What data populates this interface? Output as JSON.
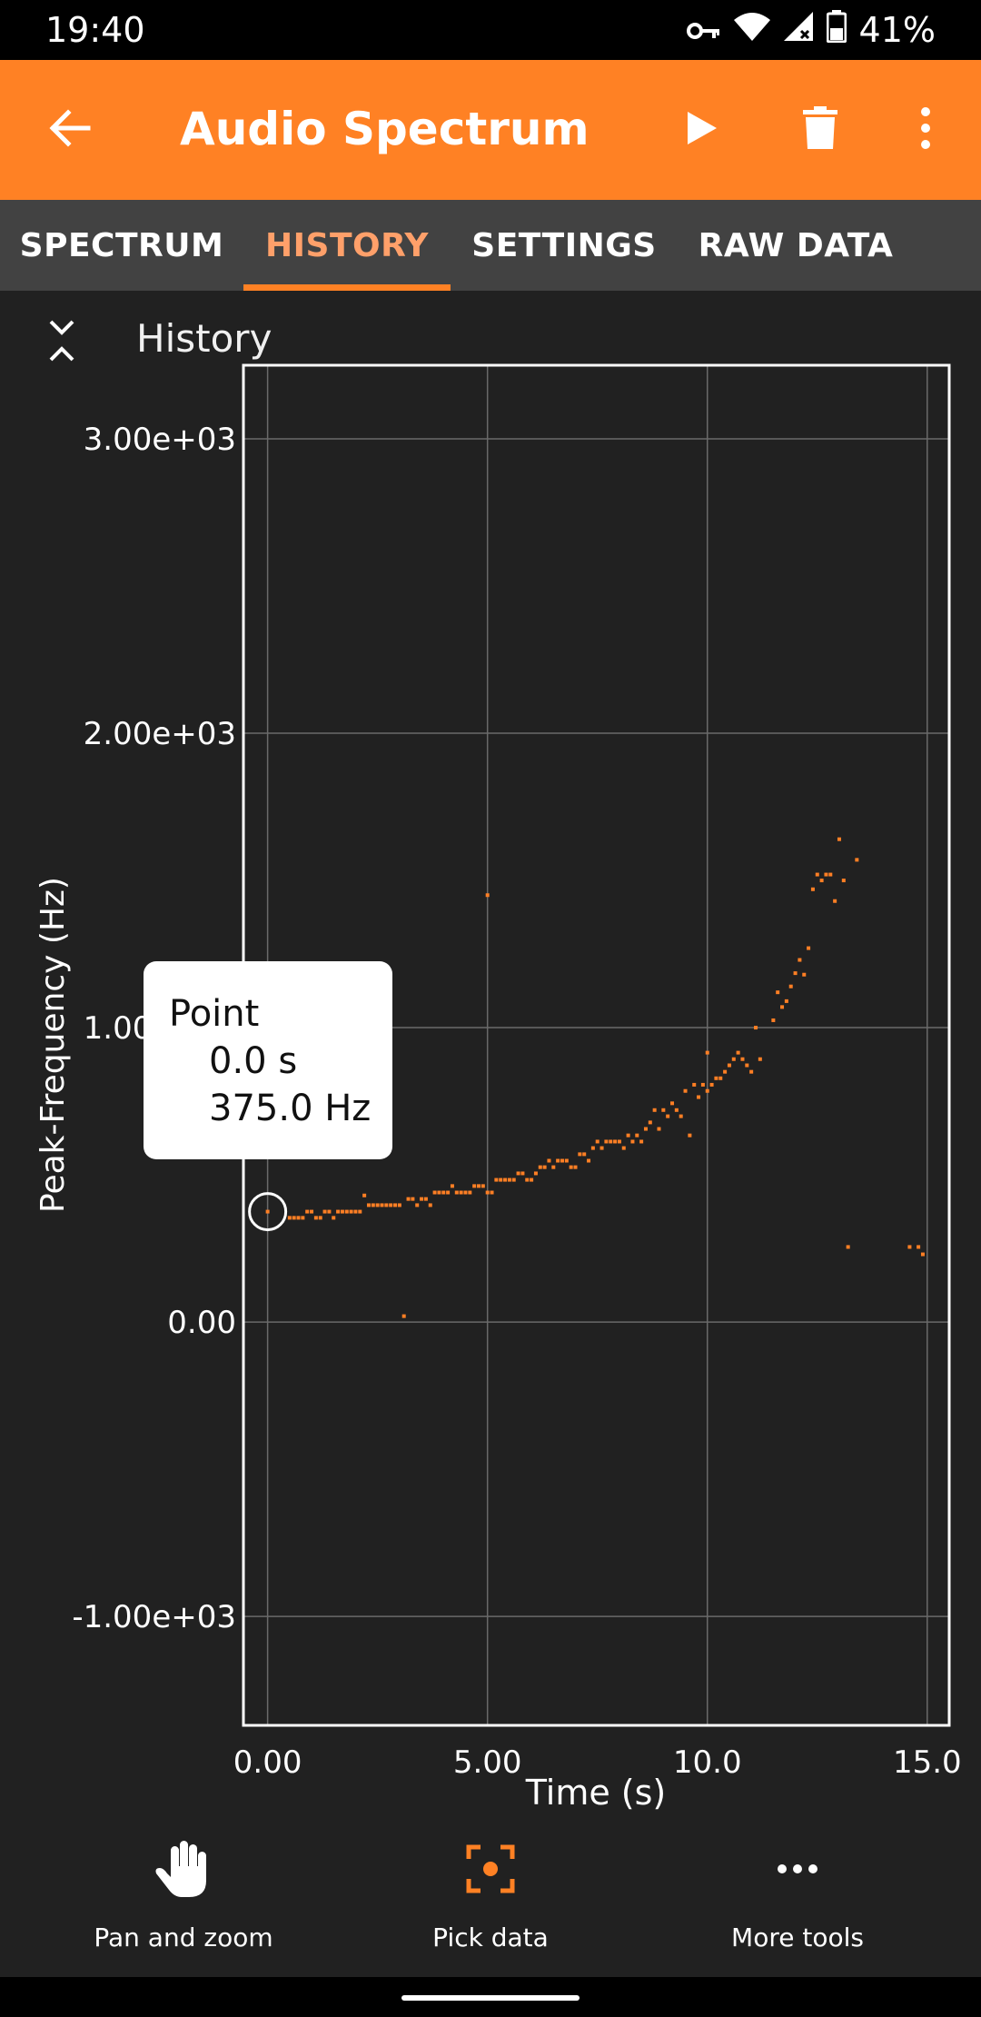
{
  "status_bar": {
    "time": "19:40",
    "battery": "41%"
  },
  "app_bar": {
    "title": "Audio Spectrum",
    "back_icon": "arrow-left-icon",
    "play_icon": "play-icon",
    "delete_icon": "trash-icon",
    "menu_icon": "more-vert-icon"
  },
  "tabs": [
    {
      "label": "SPECTRUM",
      "active": false
    },
    {
      "label": "HISTORY",
      "active": true
    },
    {
      "label": "SETTINGS",
      "active": false
    },
    {
      "label": "RAW DATA",
      "active": false
    }
  ],
  "section": {
    "title": "History",
    "icon": "collapse-icon"
  },
  "colors": {
    "accent": "#ff8124",
    "background": "#212121",
    "data_point": "#ff7f24"
  },
  "tooltip": {
    "title": "Point",
    "x_text": "0.0 s",
    "y_text": "375.0 Hz"
  },
  "chart_data": {
    "type": "scatter",
    "xlabel": "Time (s)",
    "ylabel": "Peak-Frequency (Hz)",
    "xlim": [
      -0.55,
      15.5
    ],
    "ylim": [
      -1370,
      3250
    ],
    "x_ticks": [
      0,
      5,
      10,
      15
    ],
    "x_tick_labels": [
      "0.00",
      "5.00",
      "10.0",
      "15.0"
    ],
    "y_ticks": [
      -1000,
      0,
      1000,
      2000,
      3000
    ],
    "y_tick_labels": [
      "-1.00e+03",
      "0.00",
      "1.00e+03",
      "2.00e+03",
      "3.00e+03"
    ],
    "grid": true,
    "selected_point": {
      "x": 0.0,
      "y": 375.0
    },
    "series": [
      {
        "points": [
          [
            0.0,
            375
          ],
          [
            0.5,
            354
          ],
          [
            0.6,
            354
          ],
          [
            0.7,
            354
          ],
          [
            0.8,
            354
          ],
          [
            0.9,
            375
          ],
          [
            1.0,
            375
          ],
          [
            1.1,
            354
          ],
          [
            1.2,
            354
          ],
          [
            1.3,
            375
          ],
          [
            1.4,
            375
          ],
          [
            1.5,
            354
          ],
          [
            1.6,
            375
          ],
          [
            1.7,
            375
          ],
          [
            1.8,
            375
          ],
          [
            1.9,
            375
          ],
          [
            2.0,
            375
          ],
          [
            2.1,
            375
          ],
          [
            2.2,
            430
          ],
          [
            2.3,
            397
          ],
          [
            2.4,
            397
          ],
          [
            2.5,
            397
          ],
          [
            2.6,
            397
          ],
          [
            2.7,
            397
          ],
          [
            2.8,
            397
          ],
          [
            2.9,
            397
          ],
          [
            3.0,
            397
          ],
          [
            3.1,
            20
          ],
          [
            3.2,
            418
          ],
          [
            3.3,
            418
          ],
          [
            3.4,
            397
          ],
          [
            3.5,
            418
          ],
          [
            3.6,
            418
          ],
          [
            3.7,
            397
          ],
          [
            3.8,
            440
          ],
          [
            3.9,
            440
          ],
          [
            4.0,
            440
          ],
          [
            4.1,
            440
          ],
          [
            4.2,
            462
          ],
          [
            4.3,
            440
          ],
          [
            4.4,
            440
          ],
          [
            4.5,
            440
          ],
          [
            4.6,
            440
          ],
          [
            4.7,
            462
          ],
          [
            4.8,
            462
          ],
          [
            4.9,
            462
          ],
          [
            5.0,
            440
          ],
          [
            5.1,
            440
          ],
          [
            5.0,
            1450
          ],
          [
            5.2,
            483
          ],
          [
            5.3,
            483
          ],
          [
            5.4,
            483
          ],
          [
            5.5,
            483
          ],
          [
            5.6,
            483
          ],
          [
            5.7,
            505
          ],
          [
            5.8,
            505
          ],
          [
            5.9,
            483
          ],
          [
            6.0,
            483
          ],
          [
            6.1,
            505
          ],
          [
            6.2,
            526
          ],
          [
            6.3,
            526
          ],
          [
            6.4,
            548
          ],
          [
            6.5,
            526
          ],
          [
            6.6,
            548
          ],
          [
            6.7,
            548
          ],
          [
            6.8,
            548
          ],
          [
            6.9,
            526
          ],
          [
            7.0,
            526
          ],
          [
            7.1,
            570
          ],
          [
            7.2,
            570
          ],
          [
            7.3,
            548
          ],
          [
            7.4,
            591
          ],
          [
            7.5,
            613
          ],
          [
            7.6,
            591
          ],
          [
            7.7,
            613
          ],
          [
            7.8,
            613
          ],
          [
            7.9,
            613
          ],
          [
            8.0,
            613
          ],
          [
            8.1,
            591
          ],
          [
            8.2,
            634
          ],
          [
            8.3,
            613
          ],
          [
            8.4,
            634
          ],
          [
            8.5,
            613
          ],
          [
            8.6,
            656
          ],
          [
            8.7,
            678
          ],
          [
            8.8,
            720
          ],
          [
            8.9,
            656
          ],
          [
            9.0,
            720
          ],
          [
            9.1,
            699
          ],
          [
            9.2,
            743
          ],
          [
            9.3,
            720
          ],
          [
            9.4,
            699
          ],
          [
            9.5,
            785
          ],
          [
            9.6,
            634
          ],
          [
            9.7,
            806
          ],
          [
            9.8,
            764
          ],
          [
            9.9,
            806
          ],
          [
            10.0,
            785
          ],
          [
            10.0,
            915
          ],
          [
            10.1,
            806
          ],
          [
            10.2,
            828
          ],
          [
            10.3,
            828
          ],
          [
            10.4,
            850
          ],
          [
            10.5,
            872
          ],
          [
            10.6,
            893
          ],
          [
            10.7,
            915
          ],
          [
            10.8,
            893
          ],
          [
            10.9,
            872
          ],
          [
            11.0,
            850
          ],
          [
            11.1,
            1000
          ],
          [
            11.2,
            893
          ],
          [
            11.5,
            1025
          ],
          [
            11.6,
            1120
          ],
          [
            11.7,
            1070
          ],
          [
            11.8,
            1090
          ],
          [
            11.9,
            1140
          ],
          [
            12.0,
            1185
          ],
          [
            12.1,
            1230
          ],
          [
            12.2,
            1180
          ],
          [
            12.3,
            1270
          ],
          [
            12.4,
            1470
          ],
          [
            12.5,
            1520
          ],
          [
            12.6,
            1500
          ],
          [
            12.7,
            1520
          ],
          [
            12.8,
            1520
          ],
          [
            12.9,
            1430
          ],
          [
            13.0,
            1640
          ],
          [
            13.1,
            1500
          ],
          [
            13.2,
            255
          ],
          [
            13.4,
            1570
          ],
          [
            14.6,
            255
          ],
          [
            14.8,
            255
          ],
          [
            14.9,
            230
          ]
        ]
      }
    ]
  },
  "bottom_tools": [
    {
      "label": "Pan and zoom",
      "icon": "hand-icon"
    },
    {
      "label": "Pick data",
      "icon": "pick-target-icon"
    },
    {
      "label": "More tools",
      "icon": "more-horiz-icon"
    }
  ]
}
